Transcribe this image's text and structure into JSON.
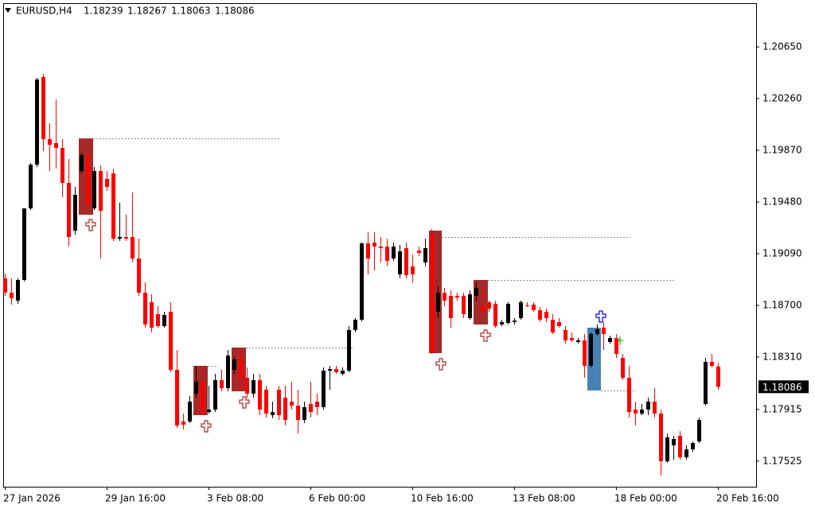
{
  "chart_data": {
    "type": "candlestick",
    "title": "EURUSD,H4",
    "categories": [
      "27 Jan 2026",
      null,
      null,
      null,
      null,
      null,
      null,
      null,
      null,
      null,
      null,
      null,
      null,
      null,
      null,
      null,
      "29 Jan 16:00",
      null,
      null,
      null,
      null,
      null,
      null,
      null,
      null,
      null,
      null,
      null,
      null,
      null,
      null,
      null,
      "3 Feb 08:00",
      null,
      null,
      null,
      null,
      null,
      null,
      null,
      null,
      null,
      null,
      null,
      null,
      null,
      null,
      null,
      "6 Feb 00:00",
      null,
      null,
      null,
      null,
      null,
      null,
      null,
      null,
      null,
      null,
      null,
      null,
      null,
      null,
      null,
      "10 Feb 16:00",
      null,
      null,
      null,
      null,
      null,
      null,
      null,
      null,
      null,
      null,
      null,
      null,
      null,
      null,
      null,
      "13 Feb 08:00",
      null,
      null,
      null,
      null,
      null,
      null,
      null,
      null,
      null,
      null,
      null,
      null,
      null,
      null,
      null,
      "18 Feb 00:00",
      null,
      null,
      null,
      null,
      null,
      null,
      null,
      null,
      null,
      null,
      null,
      null,
      null,
      null,
      null,
      "20 Feb 16:00"
    ],
    "open": [
      1.18904,
      1.18796,
      1.18736,
      1.18892,
      1.19432,
      1.19762,
      1.20422,
      1.19954,
      1.19924,
      1.19888,
      1.19624,
      1.19264,
      1.19714,
      1.19834,
      1.19432,
      1.19714,
      1.19654,
      1.19696,
      1.19204,
      1.19216,
      1.19216,
      1.19054,
      1.18796,
      1.18724,
      1.18634,
      1.18544,
      1.18652,
      1.18214,
      1.17824,
      1.17824,
      1.18034,
      1.18124,
      1.17896,
      1.17914,
      1.18136,
      1.18076,
      1.18214,
      1.18304,
      1.18154,
      1.18034,
      1.18136,
      1.18064,
      1.17872,
      1.18064,
      1.18004,
      1.17974,
      1.17944,
      1.17836,
      1.17956,
      1.17974,
      1.17932,
      1.18208,
      1.1822,
      1.18184,
      1.18208,
      1.18514,
      1.18592,
      1.19168,
      1.19174,
      1.19144,
      1.19144,
      1.19054,
      1.18934,
      1.19132,
      1.18994,
      1.19114,
      1.19024,
      1.19234,
      1.18652,
      1.18796,
      1.18772,
      1.18772,
      1.18772,
      1.18604,
      1.18772,
      1.18694,
      1.18724,
      1.18712,
      1.18556,
      1.18568,
      1.18574,
      1.18604,
      1.187,
      1.18706,
      1.18664,
      1.18652,
      1.18592,
      1.18574,
      1.18514,
      1.18454,
      1.18424,
      1.18436,
      1.18244,
      1.18484,
      1.18532,
      1.18424,
      1.18454,
      1.18304,
      1.18154,
      1.17914,
      1.17884,
      1.17914,
      1.17974,
      1.17884,
      1.17524,
      1.17644,
      1.17716,
      1.17554,
      1.17614,
      1.17674,
      1.17956,
      1.18274,
      1.18239
    ],
    "high": [
      1.1894,
      1.18904,
      1.18904,
      1.19432,
      1.19774,
      1.20416,
      1.20446,
      1.20074,
      1.20254,
      1.19954,
      1.19804,
      1.19594,
      1.19852,
      1.19876,
      1.19744,
      1.19756,
      1.19714,
      1.19732,
      1.19474,
      1.19384,
      1.19552,
      1.19204,
      1.18874,
      1.18784,
      1.18694,
      1.18652,
      1.18724,
      1.18364,
      1.17884,
      1.18016,
      1.18244,
      1.18244,
      1.18094,
      1.18184,
      1.18214,
      1.18364,
      1.18316,
      1.18364,
      1.18232,
      1.18184,
      1.18184,
      1.18094,
      1.17974,
      1.18094,
      1.18094,
      1.18124,
      1.18064,
      1.17974,
      1.18124,
      1.18034,
      1.18232,
      1.18244,
      1.18244,
      1.18232,
      1.18544,
      1.18604,
      1.19174,
      1.19252,
      1.19252,
      1.19216,
      1.19204,
      1.19174,
      1.19156,
      1.19174,
      1.19084,
      1.19144,
      1.19204,
      1.19276,
      1.18844,
      1.18832,
      1.18814,
      1.18796,
      1.18796,
      1.18814,
      1.18874,
      1.18832,
      1.18736,
      1.18736,
      1.18592,
      1.18724,
      1.18604,
      1.18736,
      1.18724,
      1.18724,
      1.18688,
      1.18676,
      1.18634,
      1.18604,
      1.18544,
      1.18496,
      1.18454,
      1.18484,
      1.18496,
      1.18556,
      1.18574,
      1.18472,
      1.18484,
      1.18334,
      1.18244,
      1.17974,
      1.17956,
      1.18004,
      1.18076,
      1.17914,
      1.17734,
      1.17716,
      1.17752,
      1.17644,
      1.17674,
      1.17854,
      1.18304,
      1.18334,
      1.18267
    ],
    "low": [
      1.18772,
      1.18706,
      1.18712,
      1.1888,
      1.1942,
      1.19744,
      1.19864,
      1.19714,
      1.19732,
      1.19516,
      1.19144,
      1.19234,
      1.19696,
      1.19432,
      1.1942,
      1.19054,
      1.19564,
      1.19186,
      1.19186,
      1.19186,
      1.19024,
      1.18772,
      1.18532,
      1.18496,
      1.18532,
      1.18532,
      1.18196,
      1.17776,
      1.17764,
      1.17812,
      1.18004,
      1.17872,
      1.17884,
      1.17896,
      1.18052,
      1.18052,
      1.18184,
      1.18052,
      1.18004,
      1.18004,
      1.17872,
      1.17854,
      1.17848,
      1.17836,
      1.17794,
      1.17914,
      1.17734,
      1.17812,
      1.17854,
      1.17872,
      1.17914,
      1.18064,
      1.18184,
      1.18172,
      1.18196,
      1.18496,
      1.1858,
      1.18934,
      1.18964,
      1.19024,
      1.18996,
      1.19036,
      1.18904,
      1.18904,
      1.18874,
      1.19072,
      1.18994,
      1.18334,
      1.18604,
      1.18694,
      1.18532,
      1.18736,
      1.18604,
      1.18592,
      1.18736,
      1.18634,
      1.18652,
      1.18532,
      1.18544,
      1.18556,
      1.18556,
      1.18592,
      1.18688,
      1.18652,
      1.18574,
      1.18574,
      1.18484,
      1.18532,
      1.18412,
      1.18424,
      1.18412,
      1.18154,
      1.18232,
      1.18472,
      1.18364,
      1.18412,
      1.18304,
      1.18136,
      1.17854,
      1.17794,
      1.17872,
      1.17872,
      1.17854,
      1.17416,
      1.17512,
      1.17536,
      1.17536,
      1.17536,
      1.17596,
      1.17662,
      1.17944,
      1.18232,
      1.18063
    ],
    "close": [
      1.18796,
      1.18754,
      1.18892,
      1.19432,
      1.19762,
      1.20404,
      1.19954,
      1.19912,
      1.19888,
      1.19624,
      1.19216,
      1.19534,
      1.19834,
      1.19456,
      1.19714,
      1.19414,
      1.19594,
      1.19204,
      1.19216,
      1.19204,
      1.19054,
      1.18796,
      1.18556,
      1.18532,
      1.18544,
      1.18628,
      1.18214,
      1.17794,
      1.178,
      1.17974,
      1.18124,
      1.17884,
      1.17914,
      1.18136,
      1.18076,
      1.18322,
      1.18292,
      1.18154,
      1.18034,
      1.18136,
      1.17914,
      1.17884,
      1.17896,
      1.17872,
      1.17836,
      1.17944,
      1.17836,
      1.17932,
      1.17896,
      1.17932,
      1.18208,
      1.1822,
      1.18196,
      1.18208,
      1.18514,
      1.18592,
      1.19168,
      1.19054,
      1.19144,
      1.19132,
      1.19036,
      1.19144,
      1.19108,
      1.18928,
      1.18934,
      1.19096,
      1.19132,
      1.18346,
      1.18796,
      1.18736,
      1.18604,
      1.1876,
      1.18634,
      1.18784,
      1.18832,
      1.18652,
      1.18676,
      1.18544,
      1.18574,
      1.18712,
      1.18586,
      1.18724,
      1.18694,
      1.18664,
      1.18592,
      1.18604,
      1.18496,
      1.18544,
      1.18436,
      1.18436,
      1.18436,
      1.18244,
      1.18484,
      1.1852,
      1.18484,
      1.18454,
      1.18334,
      1.18154,
      1.17896,
      1.17884,
      1.17914,
      1.17974,
      1.17884,
      1.17524,
      1.17704,
      1.17692,
      1.17554,
      1.17614,
      1.17662,
      1.17836,
      1.18274,
      1.18244,
      1.18086
    ],
    "up_color": "#000000",
    "down_color": "#ff0000",
    "ylim": [
      1.17332,
      1.2098
    ],
    "yticks": [
      {
        "value": 1.2065,
        "label": "1.20650"
      },
      {
        "value": 1.2026,
        "label": "1.20260"
      },
      {
        "value": 1.1987,
        "label": "1.19870"
      },
      {
        "value": 1.1948,
        "label": "1.19480"
      },
      {
        "value": 1.1909,
        "label": "1.19090"
      },
      {
        "value": 1.187,
        "label": "1.18700"
      },
      {
        "value": 1.1831,
        "label": "1.18310"
      },
      1.17915,
      1.17525
    ]
  }
}
